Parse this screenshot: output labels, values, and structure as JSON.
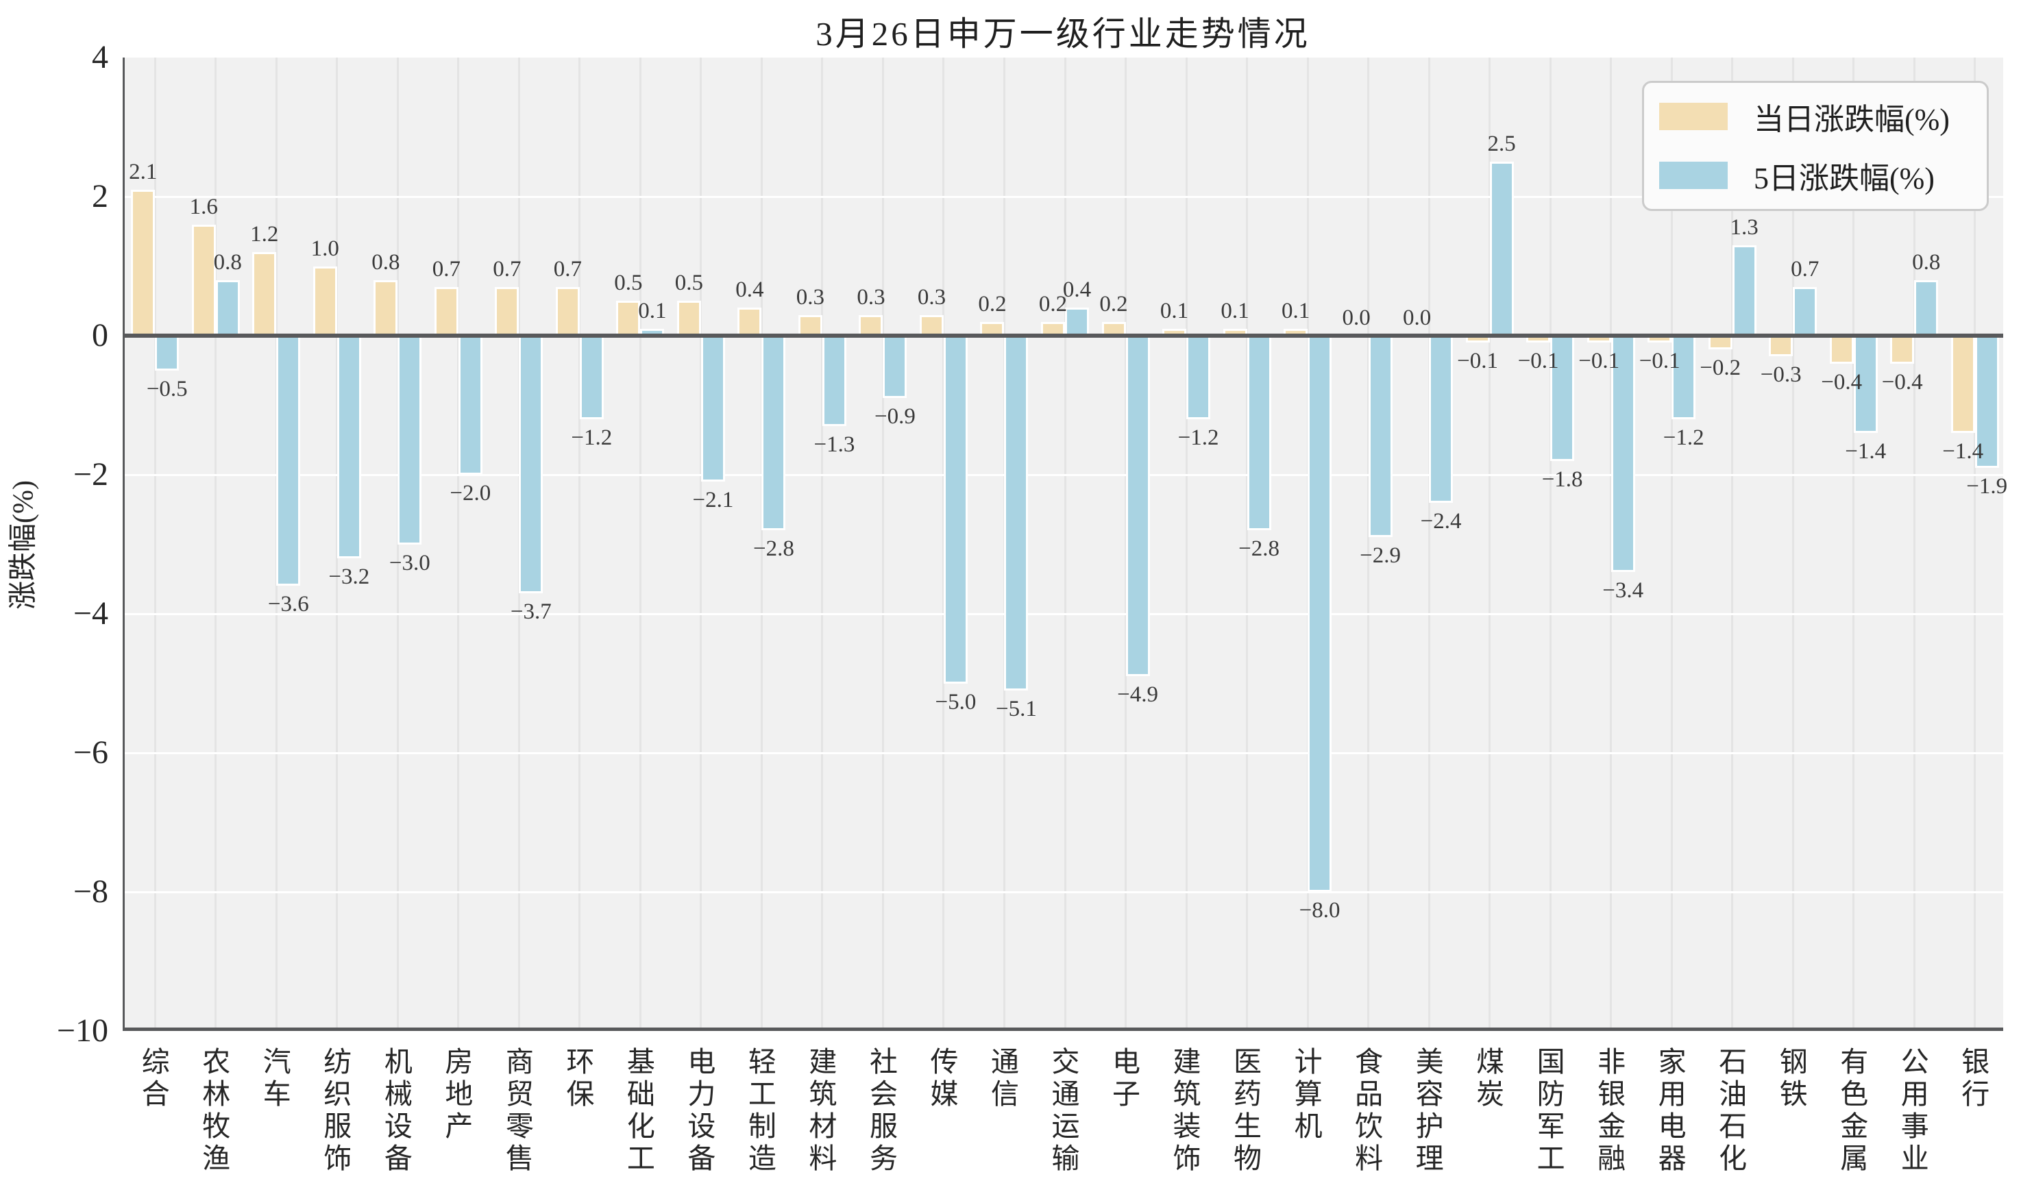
{
  "title": "3月26日申万一级行业走势情况",
  "y_axis": {
    "label": "涨跌幅(%)",
    "ticks": [
      4,
      2,
      0,
      -2,
      -4,
      -6,
      -8,
      -10
    ]
  },
  "legend": {
    "items": [
      {
        "label": "当日涨跌幅(%)",
        "color": "#f3deb3"
      },
      {
        "label": "5日涨跌幅(%)",
        "color": "#a9d3e2"
      }
    ]
  },
  "colors": {
    "plot_background": "#f1f1f1",
    "vertical_grid": "#e4e4e4",
    "horizontal_grid": "#ffffff",
    "axis_line": "#58595b",
    "bar_edge": "#ffffff",
    "text": "#262626"
  },
  "chart_data": {
    "type": "bar",
    "title": "3月26日申万一级行业走势情况",
    "xlabel": "",
    "ylabel": "涨跌幅(%)",
    "ylim": [
      -10,
      4
    ],
    "yticks": [
      4,
      2,
      0,
      -2,
      -4,
      -6,
      -8,
      -10
    ],
    "grid": true,
    "legend_position": "top-right",
    "categories": [
      "综合",
      "农林牧渔",
      "汽车",
      "纺织服饰",
      "机械设备",
      "房地产",
      "商贸零售",
      "环保",
      "基础化工",
      "电力设备",
      "轻工制造",
      "建筑材料",
      "社会服务",
      "传媒",
      "通信",
      "交通运输",
      "电子",
      "建筑装饰",
      "医药生物",
      "计算机",
      "食品饮料",
      "美容护理",
      "煤炭",
      "国防军工",
      "非银金融",
      "家用电器",
      "石油石化",
      "钢铁",
      "有色金属",
      "公用事业",
      "银行"
    ],
    "series": [
      {
        "name": "当日涨跌幅(%)",
        "color": "#f3deb3",
        "values": [
          2.1,
          1.6,
          1.2,
          1.0,
          0.8,
          0.7,
          0.7,
          0.7,
          0.5,
          0.5,
          0.4,
          0.3,
          0.3,
          0.3,
          0.2,
          0.2,
          0.2,
          0.1,
          0.1,
          0.1,
          0.0,
          0.0,
          -0.1,
          -0.1,
          -0.1,
          -0.1,
          -0.2,
          -0.3,
          -0.4,
          -0.4,
          -1.4
        ]
      },
      {
        "name": "5日涨跌幅(%)",
        "color": "#a9d3e2",
        "values": [
          -0.5,
          0.8,
          -3.6,
          -3.2,
          -3.0,
          -2.0,
          -3.7,
          -1.2,
          0.1,
          -2.1,
          -2.8,
          -1.3,
          -0.9,
          -5.0,
          -5.1,
          0.4,
          -4.9,
          -1.2,
          -2.8,
          -8.0,
          -2.9,
          -2.4,
          2.5,
          -1.8,
          -3.4,
          -1.2,
          1.3,
          0.7,
          -1.4,
          0.8,
          -1.9
        ]
      }
    ]
  }
}
